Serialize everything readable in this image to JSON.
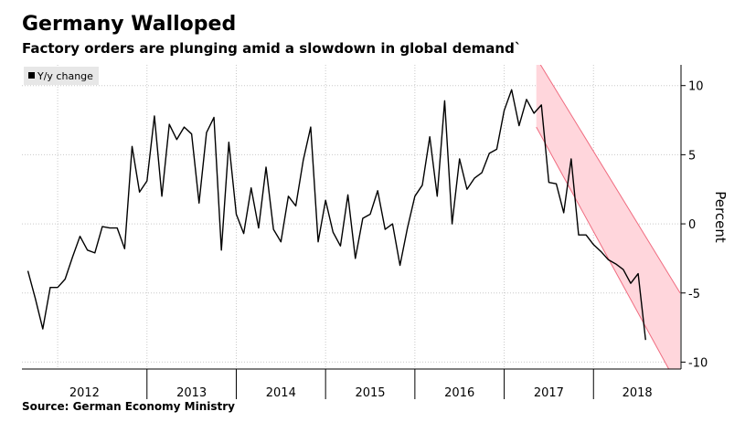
{
  "header": {
    "title": "Germany Walloped",
    "subtitle": "Factory orders are plunging amid a slowdown in global demand`"
  },
  "footer": {
    "source": "Source: German Economy Ministry"
  },
  "colors": {
    "line": "#000000",
    "band_fill": "#ffd6dc",
    "band_edge": "#f06c80",
    "grid": "#c9c9c9"
  },
  "chart_data": {
    "type": "line",
    "ylabel": "Percent",
    "ylim": [
      -10.5,
      11.5
    ],
    "yticks": [
      10,
      5,
      0,
      -5,
      -10
    ],
    "ytick_labels": [
      "10",
      "5",
      "0",
      "-5",
      "-10"
    ],
    "xlim": [
      2011.6,
      2018.98
    ],
    "x_start": "2011-09",
    "x_step": "month",
    "year_labels": [
      {
        "label": "2012",
        "year": 2012
      },
      {
        "label": "2013",
        "year": 2013
      },
      {
        "label": "2014",
        "year": 2014
      },
      {
        "label": "2015",
        "year": 2015
      },
      {
        "label": "2016",
        "year": 2016
      },
      {
        "label": "2017",
        "year": 2017
      },
      {
        "label": "2018",
        "year": 2018
      }
    ],
    "grid": true,
    "legend": {
      "placement": "top-left",
      "entries": [
        "Y/y change"
      ]
    },
    "series": [
      {
        "name": "Y/y change",
        "values": [
          -3.4,
          -5.4,
          -7.6,
          -4.6,
          -4.6,
          -4.0,
          -2.4,
          -0.9,
          -1.9,
          -2.1,
          -0.2,
          -0.3,
          -0.3,
          -1.8,
          5.6,
          2.3,
          3.1,
          7.8,
          2.0,
          7.2,
          6.1,
          7.0,
          6.5,
          1.5,
          6.6,
          7.7,
          -1.9,
          5.9,
          0.7,
          -0.7,
          2.6,
          -0.3,
          4.1,
          -0.4,
          -1.3,
          2.0,
          1.3,
          4.6,
          7.0,
          -1.3,
          1.7,
          -0.6,
          -1.6,
          2.1,
          -2.5,
          0.4,
          0.7,
          2.4,
          -0.4,
          0.0,
          -3.0,
          -0.3,
          2.0,
          2.8,
          6.3,
          2.0,
          8.9,
          0.0,
          4.7,
          2.5,
          3.3,
          3.7,
          5.1,
          5.4,
          8.2,
          9.7,
          7.1,
          9.0,
          8.0,
          8.6,
          3.0,
          2.9,
          0.8,
          4.7,
          -0.8,
          -0.8,
          -1.5,
          -2.0,
          -2.6,
          -2.9,
          -3.3,
          -4.3,
          -3.6,
          -8.4
        ]
      }
    ],
    "band": {
      "x0": 2017.36,
      "x1": 2018.97,
      "upper_start": 12.0,
      "upper_end": -5.0,
      "lower_start": 7.0,
      "lower_end": -12.0
    }
  }
}
